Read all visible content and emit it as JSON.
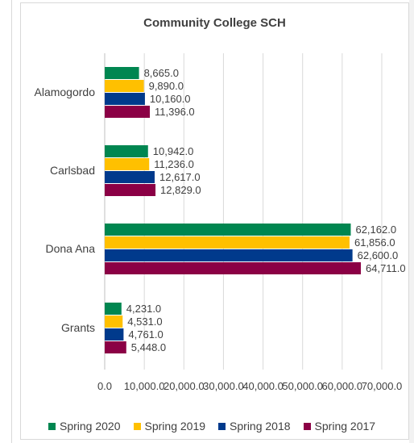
{
  "chart_data": {
    "type": "bar",
    "orientation": "horizontal",
    "title": "Community College SCH",
    "xlabel": "",
    "ylabel": "",
    "categories": [
      "Alamogordo",
      "Carlsbad",
      "Dona Ana",
      "Grants"
    ],
    "series": [
      {
        "name": "Spring 2020",
        "color": "#008650",
        "values": [
          8665,
          10942,
          62162,
          4231
        ],
        "labels": [
          "8,665.0",
          "10,942.0",
          "62,162.0",
          "4,231.0"
        ]
      },
      {
        "name": "Spring 2019",
        "color": "#ffc000",
        "values": [
          9890,
          11236,
          61856,
          4531
        ],
        "labels": [
          "9,890.0",
          "11,236.0",
          "61,856.0",
          "4,531.0"
        ]
      },
      {
        "name": "Spring 2018",
        "color": "#003a8c",
        "values": [
          10160,
          12617,
          62600,
          4761
        ],
        "labels": [
          "10,160.0",
          "12,617.0",
          "62,600.0",
          "4,761.0"
        ]
      },
      {
        "name": "Spring 2017",
        "color": "#8b0045",
        "values": [
          11396,
          12829,
          64711,
          5448
        ],
        "labels": [
          "11,396.0",
          "12,829.0",
          "64,711.0",
          "5,448.0"
        ]
      }
    ],
    "xlim": [
      0,
      70000
    ],
    "xticks": [
      0,
      10000,
      20000,
      30000,
      40000,
      50000,
      60000,
      70000
    ],
    "xtick_labels": [
      "0.0",
      "10,000.0",
      "20,000.0",
      "30,000.0",
      "40,000.0",
      "50,000.0",
      "60,000.0",
      "70,000.0"
    ],
    "grid": true,
    "legend_position": "bottom"
  }
}
